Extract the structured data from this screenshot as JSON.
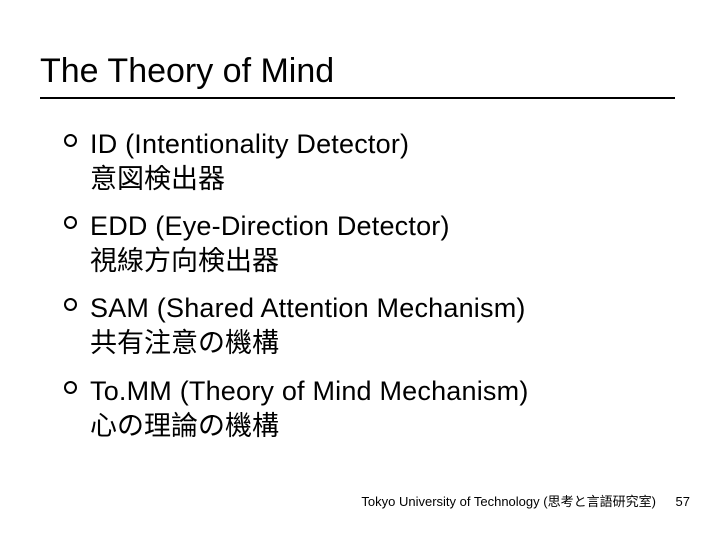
{
  "slide": {
    "title": "The Theory of Mind",
    "title_fontsize": 34,
    "title_color": "#000000",
    "underline_color": "#000000",
    "background_color": "#ffffff",
    "bullet_marker_style": "open-circle",
    "bullet_fontsize": 27,
    "body_color": "#000000",
    "bullets": [
      {
        "line1": "ID (Intentionality Detector)",
        "line2": "意図検出器"
      },
      {
        "line1": "EDD (Eye-Direction Detector)",
        "line2": "視線方向検出器"
      },
      {
        "line1": "SAM (Shared Attention Mechanism)",
        "line2": "共有注意の機構"
      },
      {
        "line1": "To.MM (Theory of Mind Mechanism)",
        "line2": "心の理論の機構"
      }
    ],
    "footer": {
      "text": "Tokyo University of Technology (思考と言語研究室)",
      "page": "57",
      "fontsize": 13
    }
  }
}
